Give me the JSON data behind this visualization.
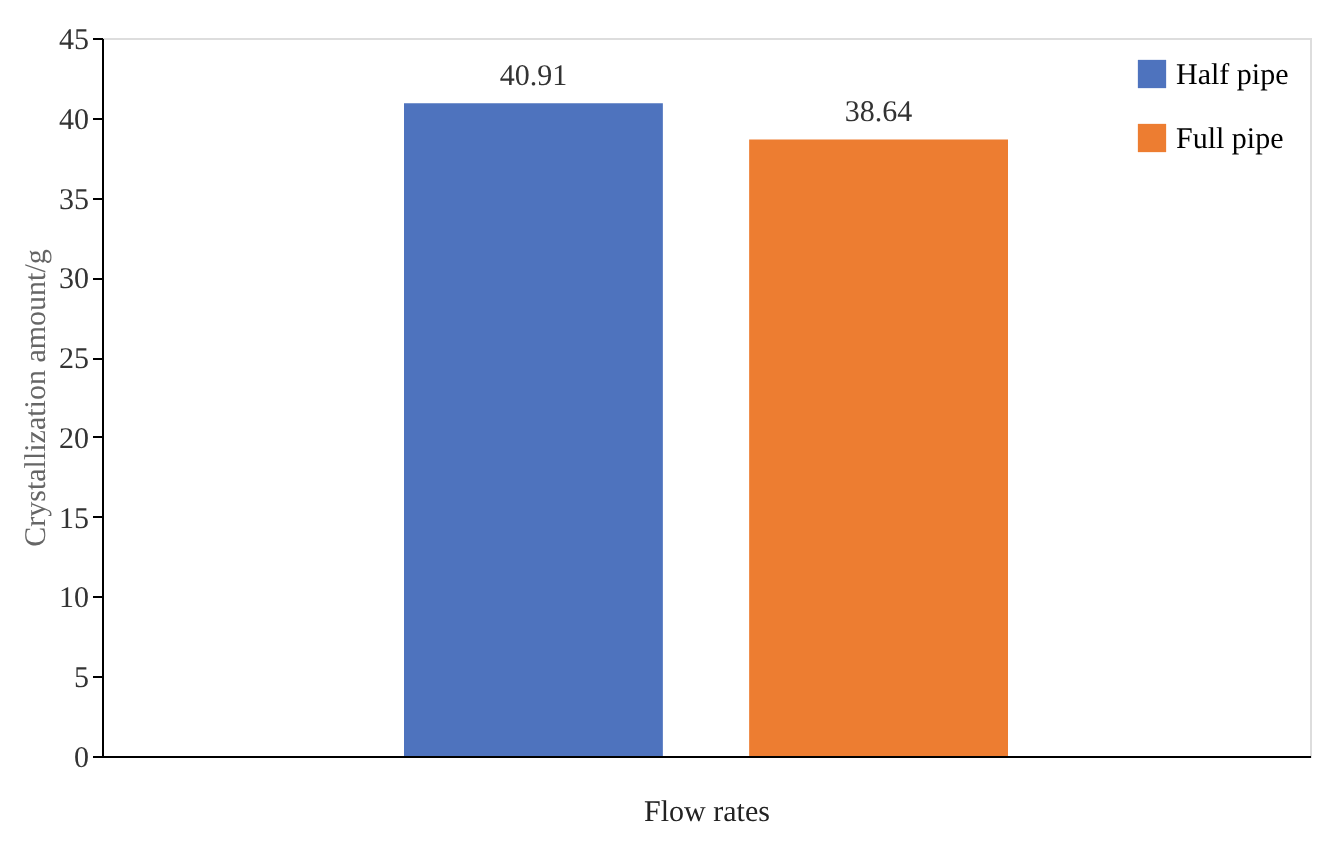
{
  "chart_data": {
    "type": "bar",
    "xlabel": "Flow rates",
    "ylabel": "Crystallization amount/g",
    "categories": [
      null
    ],
    "series": [
      {
        "name": "Half pipe",
        "color": "#4e73be",
        "values": [
          40.91
        ]
      },
      {
        "name": "Full pipe",
        "color": "#ed7d31",
        "values": [
          38.64
        ]
      }
    ],
    "ylim": [
      0,
      45
    ],
    "yticks": [
      0,
      5,
      10,
      15,
      20,
      25,
      30,
      35,
      40,
      45
    ],
    "data_labels": true,
    "legend": "top right",
    "grid": false,
    "tick_labels": "y"
  }
}
